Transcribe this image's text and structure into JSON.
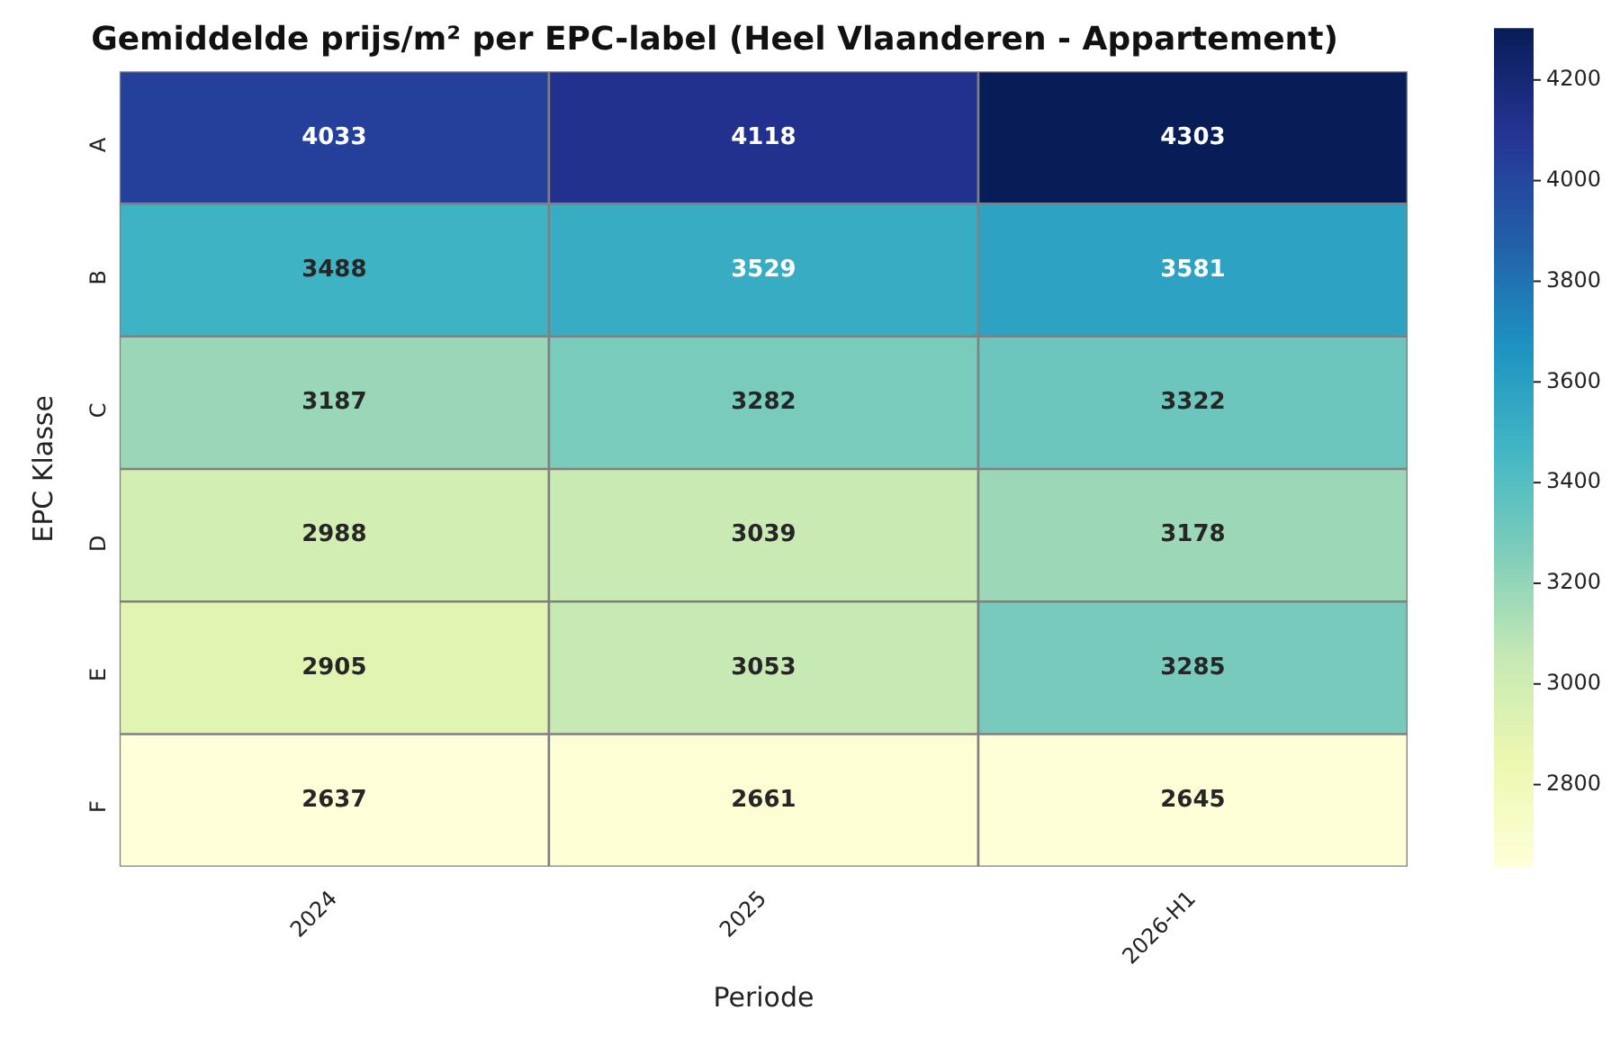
{
  "chart_data": {
    "type": "heatmap",
    "title": "Gemiddelde prijs/m² per EPC-label (Heel Vlaanderen - Appartement)",
    "xlabel": "Periode",
    "ylabel": "EPC Klasse",
    "categories": [
      "2024",
      "2025",
      "2026-H1"
    ],
    "y_categories": [
      "A",
      "B",
      "C",
      "D",
      "E",
      "F"
    ],
    "cells": [
      [
        4033,
        4118,
        4303
      ],
      [
        3488,
        3529,
        3581
      ],
      [
        3187,
        3282,
        3322
      ],
      [
        2988,
        3039,
        3178
      ],
      [
        2905,
        3053,
        3285
      ],
      [
        2637,
        2661,
        2645
      ]
    ],
    "clim": [
      2637,
      4303
    ],
    "cticks": [
      2800,
      3000,
      3200,
      3400,
      3600,
      3800,
      4000,
      4200
    ],
    "data_labels": true
  }
}
